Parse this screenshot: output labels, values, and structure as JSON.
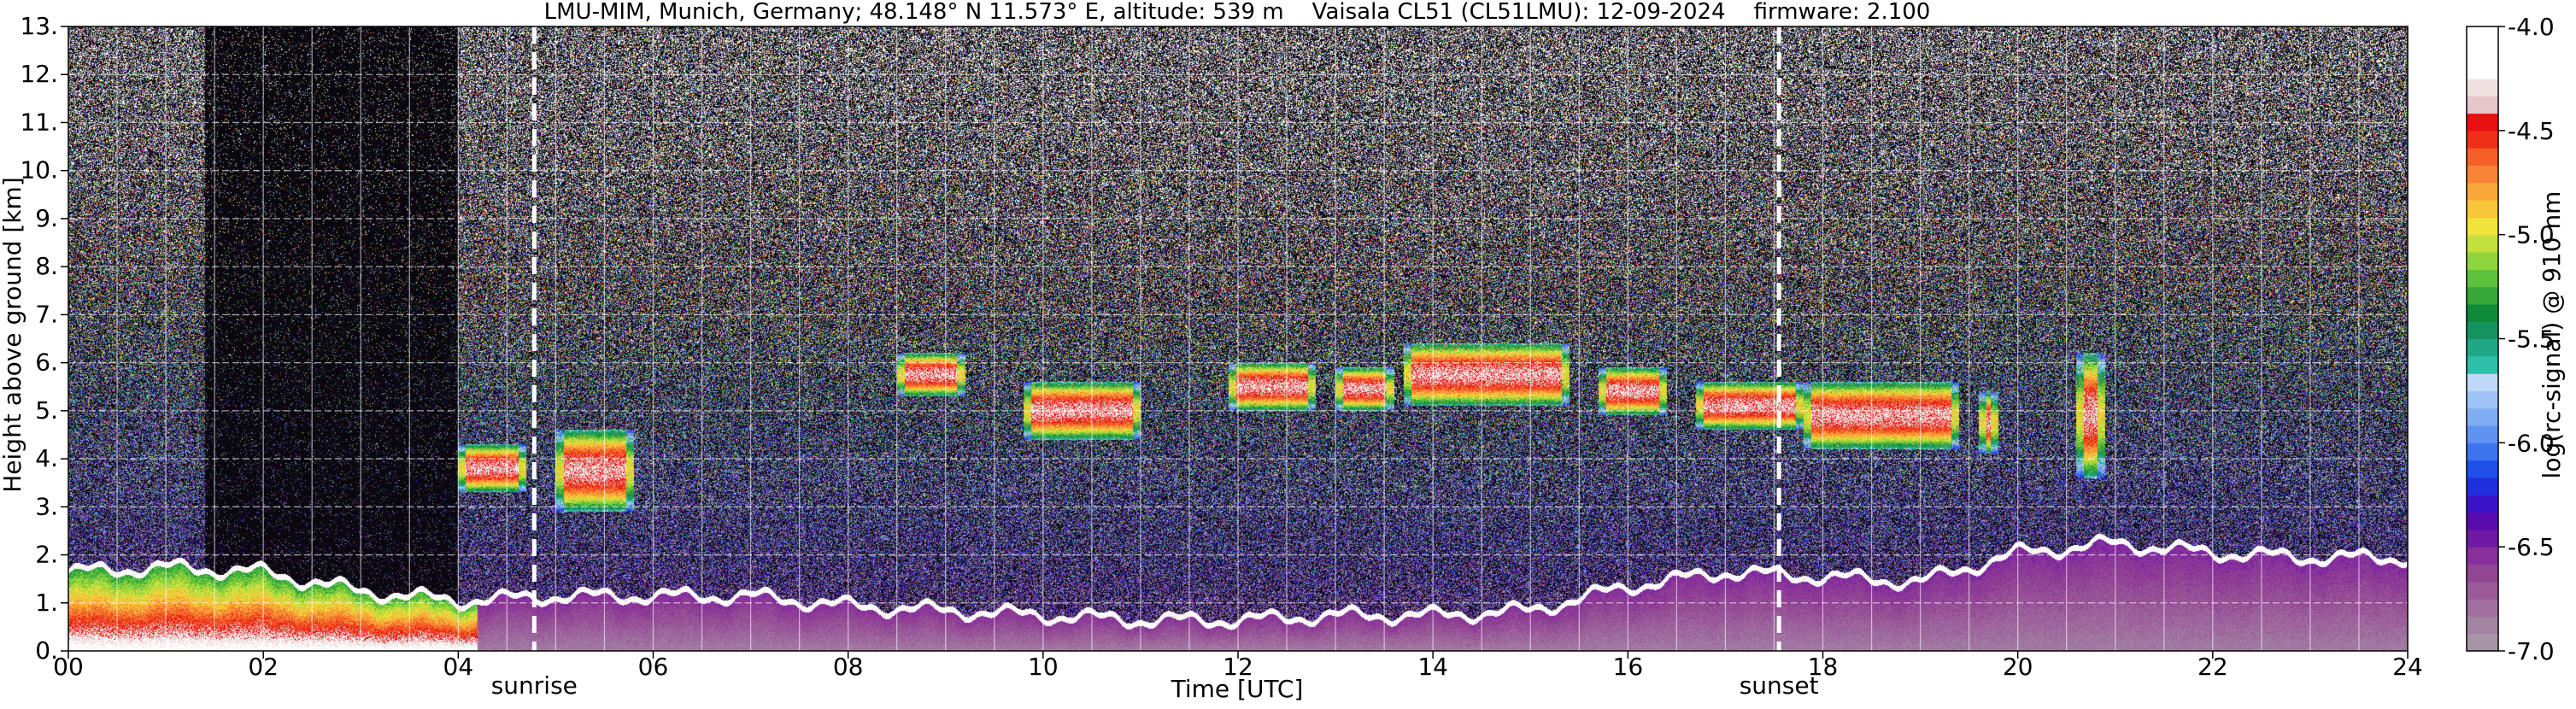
{
  "chart_data": {
    "type": "heatmap",
    "title": "LMU-MIM, Munich, Germany; 48.148° N 11.573° E, altitude: 539 m    Vaisala CL51 (CL51LMU): 12-09-2024    firmware: 2.100",
    "xlabel": "Time [UTC]",
    "ylabel": "Height above ground [km]",
    "xlim": [
      0,
      24
    ],
    "ylim": [
      0,
      13
    ],
    "x_ticks": [
      "00",
      "02",
      "04",
      "06",
      "08",
      "10",
      "12",
      "14",
      "16",
      "18",
      "20",
      "22",
      "24"
    ],
    "y_ticks": [
      "0.",
      "1.",
      "2.",
      "3.",
      "4.",
      "5.",
      "6.",
      "7.",
      "8.",
      "9.",
      "10.",
      "11.",
      "12.",
      "13."
    ],
    "grid": true,
    "variable": "log(rc-signal) @ 910 nm",
    "colorbar": {
      "range": [
        -7.0,
        -4.0
      ],
      "ticks": [
        "-4.0",
        "-4.5",
        "-5.0",
        "-5.5",
        "-6.0",
        "-6.5",
        "-7.0"
      ],
      "colors": [
        "#a796a7",
        "#a283a2",
        "#a06fa0",
        "#9a5a9a",
        "#924592",
        "#87309b",
        "#6f1aa4",
        "#5a0bae",
        "#3a14c8",
        "#2030dc",
        "#1f50e8",
        "#3c74ee",
        "#5f92f1",
        "#80acf3",
        "#9fc3f6",
        "#c0d8f8",
        "#2dbfa8",
        "#1fa886",
        "#15935e",
        "#0f8a3a",
        "#36a83a",
        "#5cc23c",
        "#8ed43e",
        "#c4e03e",
        "#f0e43c",
        "#f8c63a",
        "#f8a838",
        "#f88436",
        "#f46028",
        "#ee3018",
        "#e81010",
        "#e6c6c8",
        "#f1e0e0",
        "#ffffff",
        "#ffffff",
        "#ffffff"
      ]
    },
    "annotations": [
      {
        "text": "sunrise",
        "x": 4.78
      },
      {
        "text": "sunset",
        "x": 17.55
      }
    ],
    "features": {
      "boundary_layer_top_km": [
        [
          0,
          1.7
        ],
        [
          1,
          1.8
        ],
        [
          2,
          1.7
        ],
        [
          3,
          1.3
        ],
        [
          4,
          1.1
        ],
        [
          5,
          1.2
        ],
        [
          6,
          1.2
        ],
        [
          7,
          1.2
        ],
        [
          8,
          1.0
        ],
        [
          9,
          0.9
        ],
        [
          10,
          0.8
        ],
        [
          11,
          0.7
        ],
        [
          12,
          0.7
        ],
        [
          13,
          0.8
        ],
        [
          14,
          0.8
        ],
        [
          15,
          0.9
        ],
        [
          16,
          1.4
        ],
        [
          17,
          1.7
        ],
        [
          18,
          1.6
        ],
        [
          19,
          1.5
        ],
        [
          20,
          2.1
        ],
        [
          21,
          2.3
        ],
        [
          22,
          2.1
        ],
        [
          23,
          2.0
        ],
        [
          24,
          2.0
        ]
      ],
      "cloud_layers": [
        {
          "t0": 4.0,
          "t1": 4.7,
          "base_km": 3.3,
          "top_km": 4.3
        },
        {
          "t0": 5.0,
          "t1": 5.8,
          "base_km": 2.9,
          "top_km": 4.6
        },
        {
          "t0": 8.5,
          "t1": 9.2,
          "base_km": 5.3,
          "top_km": 6.2
        },
        {
          "t0": 9.8,
          "t1": 11.0,
          "base_km": 4.4,
          "top_km": 5.6
        },
        {
          "t0": 11.9,
          "t1": 12.8,
          "base_km": 5.0,
          "top_km": 6.0
        },
        {
          "t0": 13.0,
          "t1": 13.6,
          "base_km": 5.0,
          "top_km": 5.9
        },
        {
          "t0": 13.7,
          "t1": 15.4,
          "base_km": 5.1,
          "top_km": 6.4
        },
        {
          "t0": 15.7,
          "t1": 16.4,
          "base_km": 4.9,
          "top_km": 5.9
        },
        {
          "t0": 16.7,
          "t1": 17.8,
          "base_km": 4.6,
          "top_km": 5.6
        },
        {
          "t0": 17.8,
          "t1": 19.4,
          "base_km": 4.2,
          "top_km": 5.6
        },
        {
          "t0": 19.6,
          "t1": 19.8,
          "base_km": 4.1,
          "top_km": 5.4
        },
        {
          "t0": 20.6,
          "t1": 20.9,
          "base_km": 3.6,
          "top_km": 6.2
        }
      ]
    }
  }
}
